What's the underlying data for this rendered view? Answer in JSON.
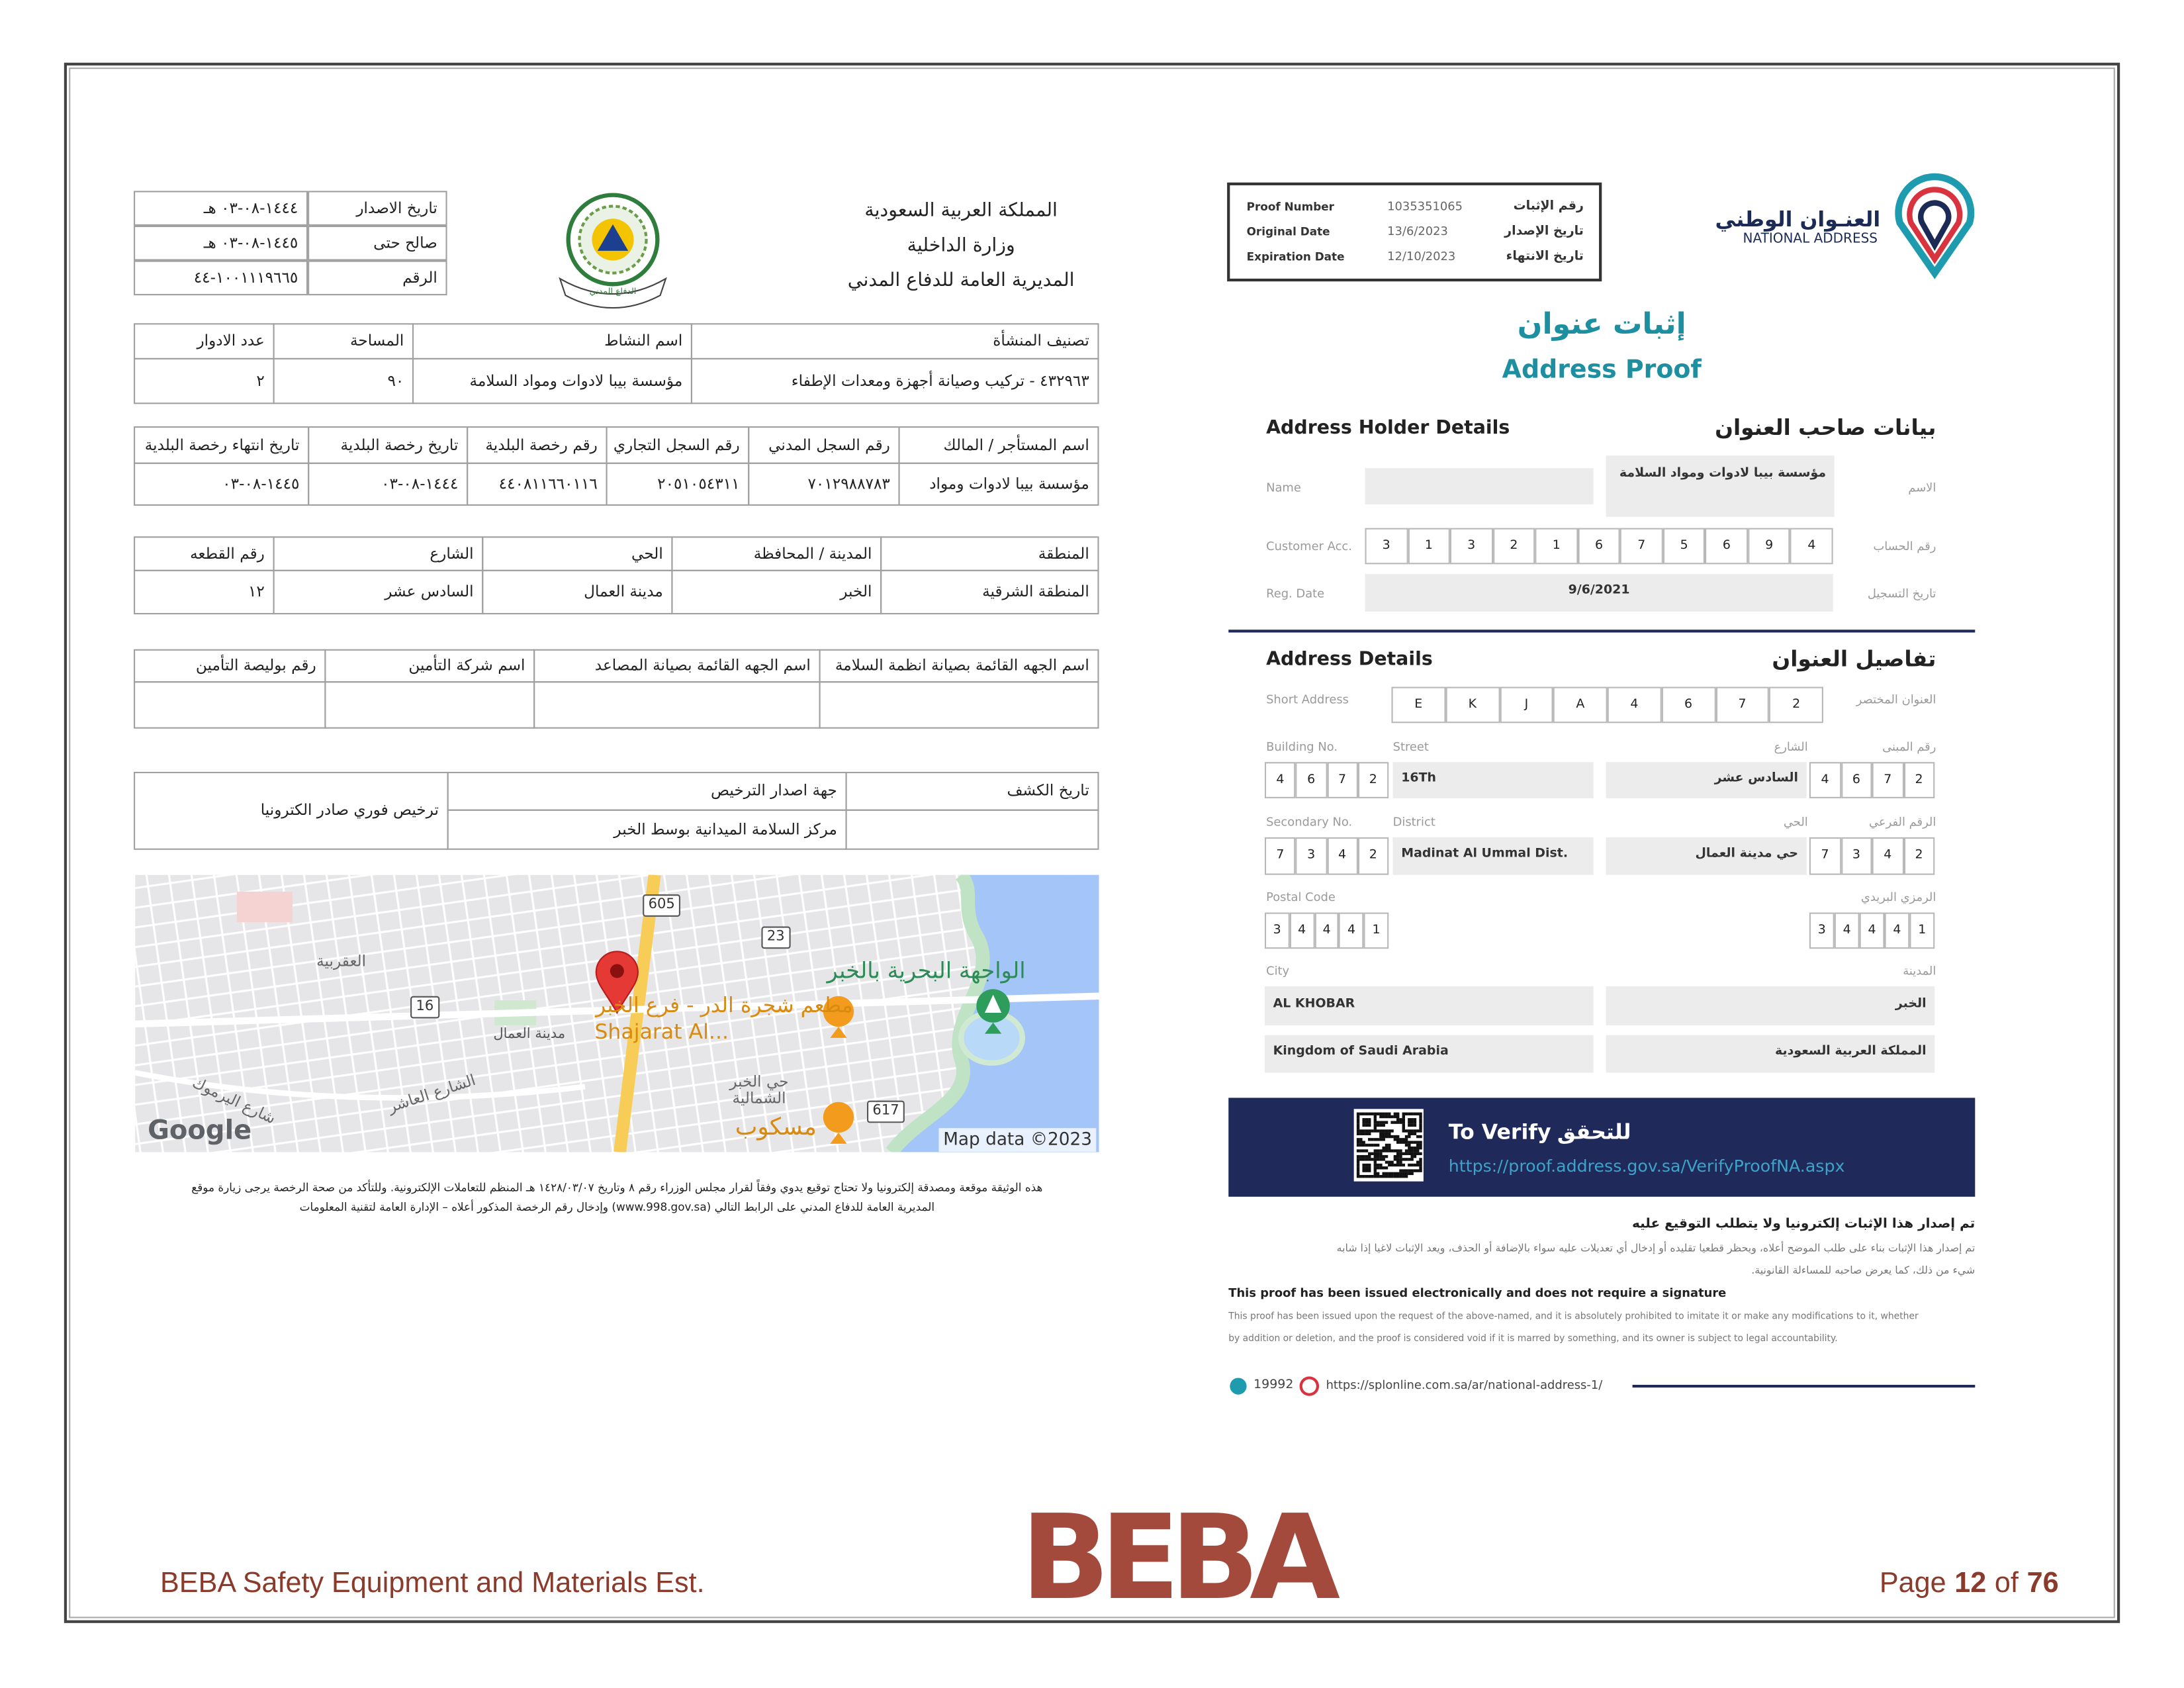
{
  "left": {
    "header": [
      "المملكة العربية السعودية",
      "وزارة الداخلية",
      "المديرية العامة للدفاع المدني"
    ],
    "emblem_text": "الدفاع المدني",
    "info": [
      [
        "تاريخ الاصدار",
        "١٤٤٤-٠٨-٠٣ هـ"
      ],
      [
        "صالح حتى",
        "١٤٤٥-٠٨-٠٣ هـ"
      ],
      [
        "الرقم",
        "١٠٠١١١٩٦٦٥-٤٤"
      ]
    ],
    "tables": [
      {
        "headers": [
          "تصنيف المنشأة",
          "اسم النشاط",
          "المساحة",
          "عدد الادوار"
        ],
        "values": [
          "٤٣٢٩٦٣ - تركيب وصيانة أجهزة ومعدات الإطفاء",
          "مؤسسة بيبا لادوات ومواد السلامة",
          "٩٠",
          "٢"
        ]
      },
      {
        "headers": [
          "اسم المستأجر / المالك",
          "رقم السجل المدني",
          "رقم السجل التجاري",
          "رقم رخصة البلدية",
          "تاريخ رخصة البلدية",
          "تاريخ انتهاء رخصة البلدية"
        ],
        "values": [
          "مؤسسة بيبا لادوات ومواد",
          "٧٠١٢٩٨٨٧٨٣",
          "٢٠٥١٠٥٤٣١١",
          "٤٤٠٨١١٦٦٠١١٦",
          "١٤٤٤-٠٨-٠٣",
          "١٤٤٥-٠٨-٠٣"
        ]
      },
      {
        "headers": [
          "المنطقة",
          "المدينة / المحافظة",
          "الحي",
          "الشارع",
          "رقم القطعه"
        ],
        "values": [
          "المنطقة الشرقية",
          "الخبر",
          "مدينة العمال",
          "السادس عشر",
          "١٢"
        ]
      },
      {
        "headers": [
          "اسم الجهه القائمة بصيانة انظمة السلامة",
          "اسم الجهه القائمة بصيانة المصاعد",
          "اسم شركة التأمين",
          "رقم بوليصة التأمين"
        ]
      }
    ],
    "license": {
      "headers": [
        "تاريخ الكشف",
        "جهة اصدار الترخيص"
      ],
      "authority": "مركز السلامة الميدانية بوسط الخبر",
      "type": "ترخيص فوري صادر الكترونيا"
    },
    "map": {
      "roads": [
        "605",
        "23",
        "16",
        "617"
      ],
      "places": [
        "العقربية",
        "مدينة العمال",
        "الشارع العاشر",
        "شارع اليرموك",
        "الواجهة البحرية بالخبر",
        "مطعم شجرة الدر - فرع الخبر",
        "Shajarat Al...",
        "حي الخبر الشمالية",
        "مسكوب"
      ],
      "credits": [
        "Google",
        "Map data ©2023"
      ]
    },
    "footnote": [
      "هذه الوثيقة موقعة ومصدقة إلكترونيا ولا تحتاج توقيع يدوي وفقاً لقرار مجلس الوزراء رقم ٨ وتاريخ ١٤٢٨/٠٣/٠٧ هـ المنظم للتعاملات الإلكترونية. وللتأكد من صحة الرخصة يرجى زيارة موقع",
      "المديرية العامة للدفاع المدني على الرابط التالي (www.998.gov.sa) وإدخال رقم الرخصة المذكور أعلاه – الإدارة العامة لتقنية المعلومات"
    ]
  },
  "right": {
    "logo": [
      "العنـوان الوطني",
      "NATIONAL ADDRESS"
    ],
    "proof": [
      [
        "Proof Number",
        "1035351065",
        "رقم الإثبات"
      ],
      [
        "Original Date",
        "13/6/2023",
        "تاريخ الإصدار"
      ],
      [
        "Expiration Date",
        "12/10/2023",
        "تاريخ الانتهاء"
      ]
    ],
    "title_ar": "إثبات عنوان",
    "title_en": "Address Proof",
    "holder": {
      "heading": [
        "Address Holder Details",
        "بيانات صاحب العنوان"
      ],
      "name": [
        "Name",
        "الاسم",
        "مؤسسة بيبا لادوات ومواد السلامة"
      ],
      "account": [
        "Customer Acc.",
        "رقم الحساب"
      ],
      "account_digits": [
        "3",
        "1",
        "3",
        "2",
        "1",
        "6",
        "7",
        "5",
        "6",
        "9",
        "4"
      ],
      "reg": [
        "Reg. Date",
        "تاريخ التسجيل",
        "9/6/2021"
      ]
    },
    "address": {
      "heading": [
        "Address Details",
        "تفاصيل العنوان"
      ],
      "short": [
        "Short Address",
        "العنوان المختصر"
      ],
      "short_chars": [
        "E",
        "K",
        "J",
        "A",
        "4",
        "6",
        "7",
        "2"
      ],
      "building": [
        "Building No.",
        "رقم المبنى"
      ],
      "building_digits": [
        "4",
        "6",
        "7",
        "2"
      ],
      "street": [
        "Street",
        "الشارع",
        "16Th",
        "السادس عشر"
      ],
      "secondary": [
        "Secondary No.",
        "الرقم الفرعي"
      ],
      "secondary_digits": [
        "7",
        "3",
        "4",
        "2"
      ],
      "district": [
        "District",
        "الحي",
        "Madinat Al Ummal Dist.",
        "حي مدينة العمال"
      ],
      "postal": [
        "Postal Code",
        "الرمزي البريدي"
      ],
      "postal_digits": [
        "3",
        "4",
        "4",
        "4",
        "1"
      ],
      "city": [
        "City",
        "المدينة",
        "AL KHOBAR",
        "الخبر"
      ],
      "country": [
        "Kingdom of Saudi Arabia",
        "المملكة العربية السعودية"
      ]
    },
    "verify": [
      "To Verify",
      "للتحقق",
      "https://proof.address.gov.sa/VerifyProofNA.aspx"
    ],
    "notes": {
      "ar_title": "تم إصدار هذا الإثبات إلكترونيا ولا يتطلب التوقيع عليه",
      "ar_body": [
        "تم إصدار هذا الإثبات بناء على طلب الموضح أعلاه، ويحظر قطعيا تقليده أو إدخال أي تعديلات عليه سواء بالإضافة أو الحذف، ويعد الإثبات لاغيا إذا شابه",
        "شيء من ذلك، كما يعرض صاحبه للمساءلة القانونية."
      ],
      "en_title": "This proof has been issued electronically and does not require a signature",
      "en_body": [
        "This proof has been issued upon the request of the above-named, and it is absolutely prohibited to imitate it or make any modifications to it, whether",
        "by addition or deletion, and the proof is considered void if it is marred by something, and its owner is subject to legal accountability."
      ]
    },
    "contact": [
      "19992",
      "https://splonline.com.sa/ar/national-address-1/"
    ]
  },
  "footer": {
    "company": "BEBA Safety Equipment and Materials Est.",
    "logo": "BEBA",
    "page": {
      "label": "Page",
      "number": 12,
      "of": "of",
      "total": 76
    }
  }
}
